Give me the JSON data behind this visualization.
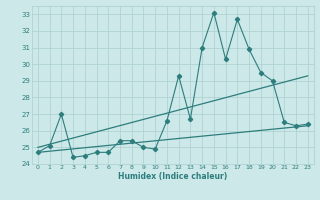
{
  "xlabel": "Humidex (Indice chaleur)",
  "xlim": [
    -0.5,
    23.5
  ],
  "ylim": [
    24,
    33.5
  ],
  "yticks": [
    24,
    25,
    26,
    27,
    28,
    29,
    30,
    31,
    32,
    33
  ],
  "xticks": [
    0,
    1,
    2,
    3,
    4,
    5,
    6,
    7,
    8,
    9,
    10,
    11,
    12,
    13,
    14,
    15,
    16,
    17,
    18,
    19,
    20,
    21,
    22,
    23
  ],
  "line_color": "#2e7d7d",
  "bg_color": "#cce8e8",
  "grid_color": "#aacfcf",
  "main_line_x": [
    0,
    1,
    2,
    3,
    4,
    5,
    6,
    7,
    8,
    9,
    10,
    11,
    12,
    13,
    14,
    15,
    16,
    17,
    18,
    19,
    20,
    21,
    22,
    23
  ],
  "main_line_y": [
    24.7,
    25.1,
    27.0,
    24.4,
    24.5,
    24.7,
    24.7,
    25.4,
    25.4,
    25.0,
    24.9,
    26.6,
    29.3,
    26.7,
    31.0,
    33.1,
    30.3,
    32.7,
    30.9,
    29.5,
    29.0,
    26.5,
    26.3,
    26.4
  ],
  "upper_line_x": [
    0,
    23
  ],
  "upper_line_y": [
    25.0,
    29.3
  ],
  "lower_line_x": [
    0,
    23
  ],
  "lower_line_y": [
    24.7,
    26.3
  ]
}
